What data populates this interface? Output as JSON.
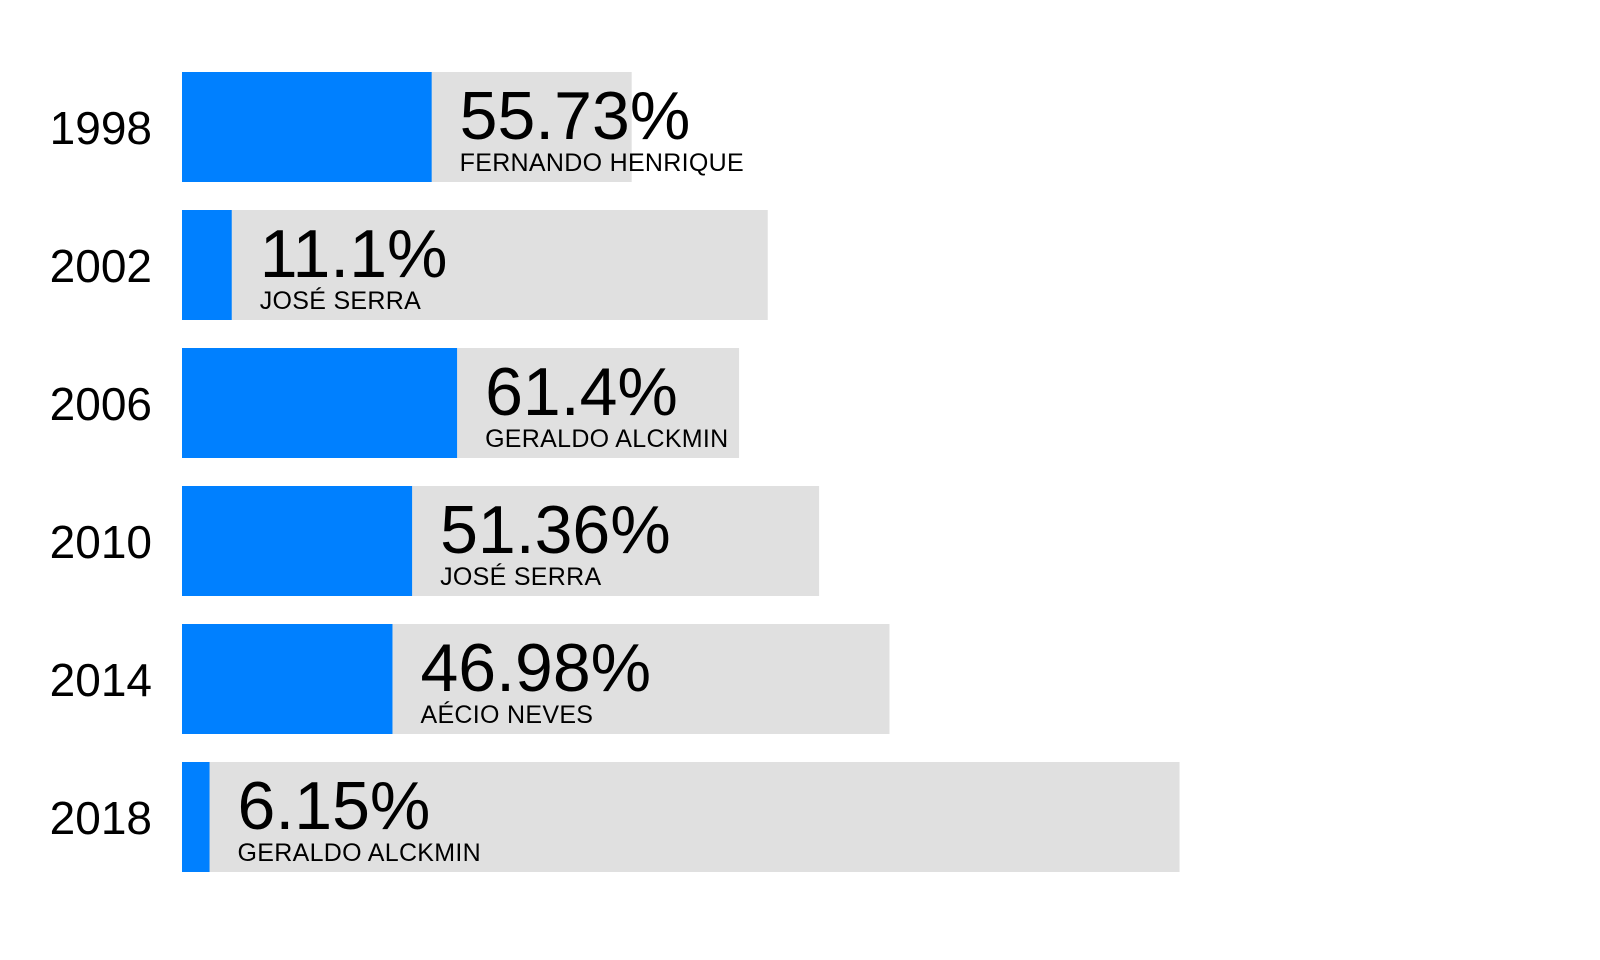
{
  "chart_data": {
    "type": "bar",
    "orientation": "horizontal",
    "categories": [
      "1998",
      "2002",
      "2006",
      "2010",
      "2014",
      "2018"
    ],
    "series": [
      {
        "values": [
          55.73,
          11.1,
          61.4,
          51.36,
          46.98,
          6.15
        ],
        "value_labels": [
          "55.73%",
          "11.1%",
          "61.4%",
          "51.36%",
          "46.98%",
          "6.15%"
        ],
        "annotations": [
          "FERNANDO HENRIQUE",
          "JOSÉ SERRA",
          "GERALDO ALCKMIN",
          "JOSÉ SERRA",
          "AÉCIO NEVES",
          "GERALDO ALCKMIN"
        ]
      }
    ],
    "title": "",
    "xlabel": "",
    "ylabel": "",
    "xlim": [
      0,
      100
    ],
    "grid": false,
    "legend": "none",
    "colors": {
      "bar": "#0080ff",
      "track": "#e0e0e0",
      "text": "#000000"
    }
  }
}
